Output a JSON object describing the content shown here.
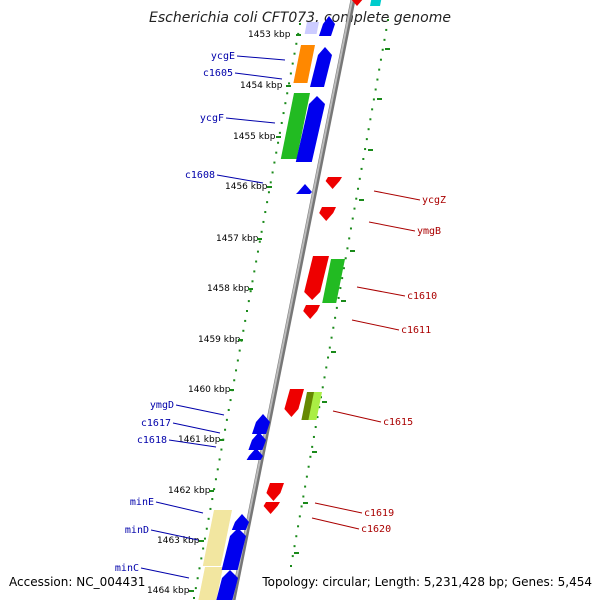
{
  "title": "Escherichia coli CFT073, complete genome",
  "footer": {
    "accession": "Accession: NC_004431",
    "summary": "Topology: circular; Length: 5,231,428 bp; Genes: 5,454"
  },
  "colors": {
    "backbone": "#8c8c8c",
    "scale_ticks": "#1a8a1a",
    "plus_strand": "#0000ee",
    "minus_strand": "#ee0000",
    "label_plus": "#0000aa",
    "label_minus": "#aa0000"
  },
  "scale_labels": [
    {
      "text": "1453 kbp",
      "kbp": 1453
    },
    {
      "text": "1454 kbp",
      "kbp": 1454
    },
    {
      "text": "1455 kbp",
      "kbp": 1455
    },
    {
      "text": "1456 kbp",
      "kbp": 1456
    },
    {
      "text": "1457 kbp",
      "kbp": 1457
    },
    {
      "text": "1458 kbp",
      "kbp": 1458
    },
    {
      "text": "1459 kbp",
      "kbp": 1459
    },
    {
      "text": "1460 kbp",
      "kbp": 1460
    },
    {
      "text": "1461 kbp",
      "kbp": 1461
    },
    {
      "text": "1462 kbp",
      "kbp": 1462
    },
    {
      "text": "1463 kbp",
      "kbp": 1463
    },
    {
      "text": "1464 kbp",
      "kbp": 1464
    }
  ],
  "genes_plus": [
    {
      "name": "ycgE"
    },
    {
      "name": "c1605"
    },
    {
      "name": "ycgF"
    },
    {
      "name": "c1608"
    },
    {
      "name": "ymgD"
    },
    {
      "name": "c1617"
    },
    {
      "name": "c1618"
    },
    {
      "name": "minE"
    },
    {
      "name": "minD"
    },
    {
      "name": "minC"
    }
  ],
  "genes_minus": [
    {
      "name": "ycgZ"
    },
    {
      "name": "ymgB"
    },
    {
      "name": "c1610"
    },
    {
      "name": "c1611"
    },
    {
      "name": "c1615"
    },
    {
      "name": "c1619"
    },
    {
      "name": "c1620"
    }
  ]
}
